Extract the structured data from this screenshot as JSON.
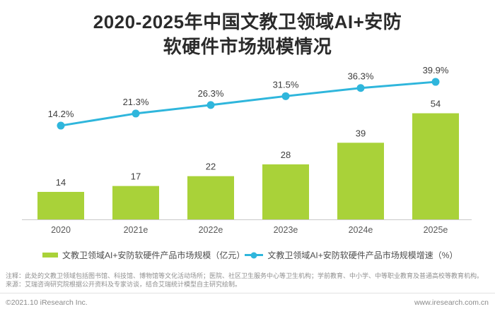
{
  "title": {
    "line1": "2020-2025年中国文教卫领域AI+安防",
    "line2": "软硬件市场规模情况"
  },
  "chart_data": {
    "type": "bar+line",
    "categories": [
      "2020",
      "2021e",
      "2022e",
      "2023e",
      "2024e",
      "2025e"
    ],
    "series": [
      {
        "name": "文教卫领域AI+安防软硬件产品市场规模（亿元）",
        "type": "bar",
        "values": [
          14,
          17,
          22,
          28,
          39,
          54
        ],
        "unit": "亿元",
        "color": "#a9d239"
      },
      {
        "name": "文教卫领域AI+安防软硬件产品市场规模增速（%）",
        "type": "line",
        "values": [
          14.2,
          21.3,
          26.3,
          31.5,
          36.3,
          39.9
        ],
        "unit": "%",
        "color": "#2fb6dc"
      }
    ],
    "value_labels_shown": true,
    "gridlines": false,
    "y_axis_shown": false,
    "legend_position": "bottom",
    "axis_color": "#c9c9c9",
    "label_color": "#404040",
    "tick_label_color": "#595959"
  },
  "legend": {
    "bar_label": "文教卫领域AI+安防软硬件产品市场规模（亿元）",
    "line_label": "文教卫领域AI+安防软硬件产品市场规模增速（%）"
  },
  "notes": {
    "note1": "注释：此处的文教卫领域包括图书馆、科技馆、博物馆等文化活动场所；医院、社区卫生服务中心等卫生机构；学前教育、中小学、中等职业教育及普通高校等教育机构。",
    "note2": "来源：艾瑞咨询研究院根据公开资料及专家访谈，结合艾瑞统计模型自主研究绘制。"
  },
  "footer": {
    "copyright": "©2021.10 iResearch Inc.",
    "website": "www.iresearch.com.cn"
  }
}
